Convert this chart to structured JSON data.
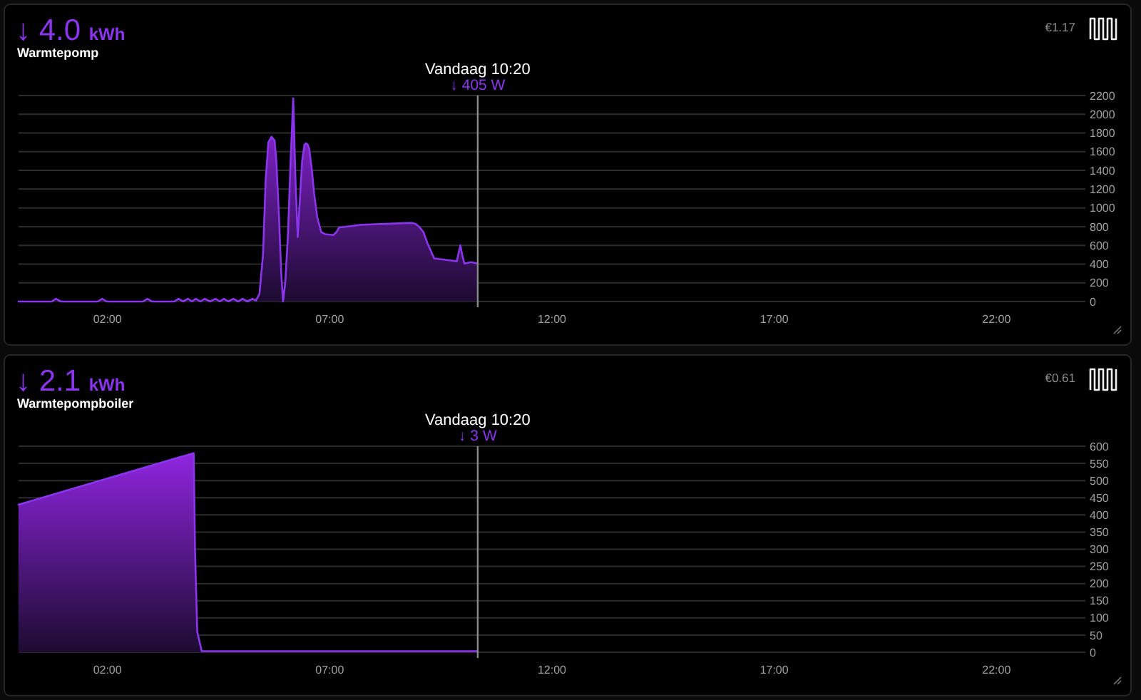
{
  "chart_data": [
    {
      "type": "area",
      "title": "Warmtepomp",
      "subtitle": "↓ 4.0 kWh",
      "annotations": [
        "↓ 405 W",
        "€1.17"
      ],
      "x": [
        0,
        0.75,
        0.84,
        0.95,
        1.78,
        1.88,
        1.98,
        2.8,
        2.9,
        3.0,
        3.5,
        3.6,
        3.7,
        3.81,
        3.9,
        3.99,
        4.09,
        4.19,
        4.31,
        4.43,
        4.53,
        4.62,
        4.72,
        4.83,
        4.94,
        5.04,
        5.15,
        5.26,
        5.34,
        5.42,
        5.5,
        5.56,
        5.62,
        5.69,
        5.76,
        5.8,
        5.86,
        5.91,
        5.95,
        6.0,
        6.06,
        6.12,
        6.18,
        6.23,
        6.28,
        6.33,
        6.38,
        6.43,
        6.46,
        6.5,
        6.54,
        6.6,
        6.65,
        6.72,
        6.81,
        6.9,
        7.08,
        7.15,
        7.21,
        7.72,
        8.85,
        8.93,
        9.01,
        9.11,
        9.2,
        9.35,
        9.86,
        9.9,
        9.94,
        9.98,
        10.03,
        10.18,
        10.33
      ],
      "values": [
        0,
        0,
        30,
        0,
        0,
        30,
        0,
        0,
        30,
        0,
        0,
        30,
        0,
        30,
        0,
        30,
        0,
        30,
        0,
        30,
        0,
        30,
        0,
        30,
        0,
        30,
        0,
        30,
        10,
        80,
        500,
        1300,
        1700,
        1760,
        1720,
        1500,
        900,
        300,
        0,
        200,
        700,
        1500,
        2170,
        1300,
        690,
        1100,
        1500,
        1670,
        1690,
        1680,
        1630,
        1400,
        1150,
        900,
        740,
        720,
        710,
        740,
        790,
        820,
        840,
        830,
        800,
        740,
        620,
        460,
        430,
        520,
        600,
        500,
        405,
        420,
        405
      ],
      "color": "#8b35ef",
      "xlim": [
        0,
        24
      ],
      "xticks": [
        {
          "value": 2,
          "label": "02:00"
        },
        {
          "value": 7,
          "label": "07:00"
        },
        {
          "value": 12,
          "label": "12:00"
        },
        {
          "value": 17,
          "label": "17:00"
        },
        {
          "value": 22,
          "label": "22:00"
        }
      ],
      "ylim": [
        0,
        2200
      ],
      "yticks": [
        0,
        200,
        400,
        600,
        800,
        1000,
        1200,
        1400,
        1600,
        1800,
        2000,
        2200
      ],
      "grid": "y",
      "ref_lines": [
        {
          "axis": "x",
          "value": 10.33,
          "label": "Vandaag 10:20",
          "color": "#8c8c8c"
        }
      ]
    },
    {
      "type": "area",
      "title": "Warmtepompboiler",
      "subtitle": "↓ 2.1 kWh",
      "annotations": [
        "↓ 3 W",
        "€0.61"
      ],
      "x": [
        0,
        3.94,
        3.97,
        4.02,
        4.12,
        10.33
      ],
      "values": [
        430,
        580,
        300,
        60,
        3,
        3
      ],
      "color": "#8b35ef",
      "xlim": [
        0,
        24
      ],
      "xticks": [
        {
          "value": 2,
          "label": "02:00"
        },
        {
          "value": 7,
          "label": "07:00"
        },
        {
          "value": 12,
          "label": "12:00"
        },
        {
          "value": 17,
          "label": "17:00"
        },
        {
          "value": 22,
          "label": "22:00"
        }
      ],
      "ylim": [
        0,
        600
      ],
      "yticks": [
        0,
        50,
        100,
        150,
        200,
        250,
        300,
        350,
        400,
        450,
        500,
        550,
        600
      ],
      "grid": "y",
      "ref_lines": [
        {
          "axis": "x",
          "value": 10.33,
          "label": "Vandaag 10:20",
          "color": "#8c8c8c"
        }
      ]
    }
  ]
}
